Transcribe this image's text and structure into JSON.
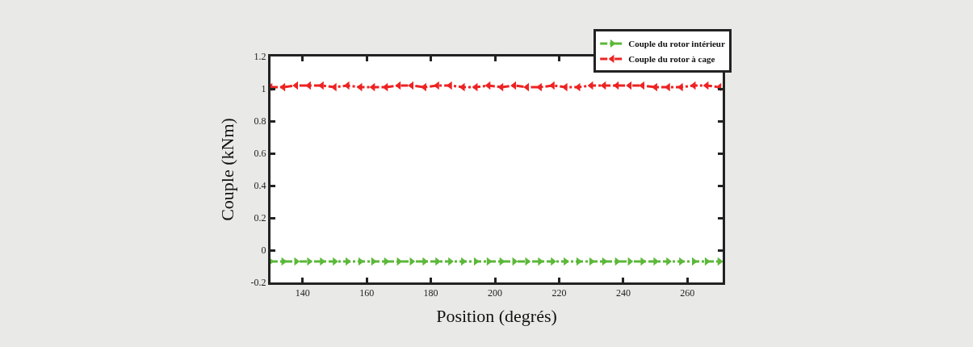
{
  "chart_data": {
    "type": "line",
    "xlabel": "Position (degrés)",
    "ylabel": "Couple (kNm)",
    "x": [
      130,
      134,
      138,
      142,
      146,
      150,
      154,
      158,
      162,
      166,
      170,
      174,
      178,
      182,
      186,
      190,
      194,
      198,
      202,
      206,
      210,
      214,
      218,
      222,
      226,
      230,
      234,
      238,
      242,
      246,
      250,
      254,
      258,
      262,
      266,
      270
    ],
    "series": [
      {
        "name": "Couple du rotor intérieur",
        "color": "#5cb83a",
        "marker": "triangle",
        "values": [
          -0.07,
          -0.07,
          -0.07,
          -0.07,
          -0.07,
          -0.07,
          -0.07,
          -0.07,
          -0.07,
          -0.07,
          -0.07,
          -0.07,
          -0.07,
          -0.07,
          -0.07,
          -0.07,
          -0.07,
          -0.07,
          -0.07,
          -0.07,
          -0.07,
          -0.07,
          -0.07,
          -0.07,
          -0.07,
          -0.07,
          -0.07,
          -0.07,
          -0.07,
          -0.07,
          -0.07,
          -0.07,
          -0.07,
          -0.07,
          -0.07,
          -0.07
        ]
      },
      {
        "name": "Couple du rotor à cage",
        "color": "#ee2222",
        "marker": "triangle",
        "values": [
          1.01,
          1.01,
          1.02,
          1.02,
          1.02,
          1.01,
          1.02,
          1.01,
          1.01,
          1.01,
          1.02,
          1.02,
          1.01,
          1.02,
          1.02,
          1.01,
          1.01,
          1.02,
          1.01,
          1.02,
          1.01,
          1.01,
          1.02,
          1.01,
          1.01,
          1.02,
          1.02,
          1.02,
          1.02,
          1.02,
          1.01,
          1.01,
          1.01,
          1.02,
          1.02,
          1.01
        ]
      }
    ],
    "xlim": [
      130,
      271
    ],
    "xticks": [
      140,
      160,
      180,
      200,
      220,
      240,
      260
    ],
    "ylim": [
      -0.2,
      1.2
    ],
    "yticks": [
      -0.2,
      0,
      0.2,
      0.4,
      0.6,
      0.8,
      1,
      1.2
    ],
    "legend": "top right",
    "line_style": "dashed"
  }
}
